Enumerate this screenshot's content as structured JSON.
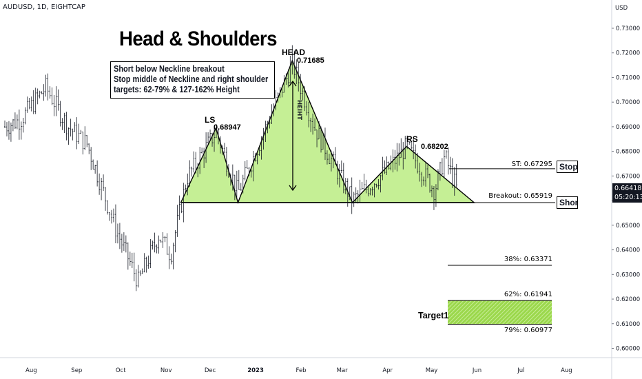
{
  "header": {
    "symbol": "AUDUSD, 1D, EIGHTCAP"
  },
  "chart_title": "Head & Shoulders",
  "notes": [
    "Short below Neckline breakout",
    "Stop middle of Neckline and right shoulder",
    "targets: 62-79% & 127-162% Height"
  ],
  "pattern_labels": {
    "ls": "LS",
    "ls_price": "0.68947",
    "head": "HEAD",
    "head_price": "0.71685",
    "rs": "RS",
    "rs_price": "0.68202",
    "height": "HEIHT"
  },
  "levels": {
    "stop": {
      "label": "ST: 0.67295",
      "tag": "Stop"
    },
    "breakout": {
      "label": "Breakout: 0.65919",
      "tag": "Shor"
    },
    "t38": {
      "label": "38%: 0.63371"
    },
    "t62": {
      "label": "62%: 0.61941"
    },
    "t79": {
      "label": "79%: 0.60977"
    },
    "target_label": "Target1"
  },
  "price_badge": {
    "price": "0.66418",
    "countdown": "05:20:13"
  },
  "colors": {
    "pattern_fill": "#c5ef95",
    "target_zone": "#9bd84c",
    "candles": "#131722",
    "badge": "#131722"
  },
  "chart_data": {
    "type": "line",
    "title": "",
    "xlabel": "",
    "ylabel": "USD",
    "ylim": [
      0.595,
      0.735
    ],
    "x_ticks": [
      "Aug",
      "Sep",
      "Oct",
      "Nov",
      "Dec",
      "2023",
      "Feb",
      "Mar",
      "Apr",
      "May",
      "Jun",
      "Jul",
      "Aug"
    ],
    "y_ticks": [
      "0.73000",
      "0.72000",
      "0.71000",
      "0.70000",
      "0.69000",
      "0.68000",
      "0.67000",
      "0.66000",
      "0.65000",
      "0.64000",
      "0.63000",
      "0.62000",
      "0.61000",
      "0.60000"
    ],
    "price_path": {
      "x": [
        "2022-07-14",
        "2022-07-25",
        "2022-08-11",
        "2022-08-26",
        "2022-09-08",
        "2022-09-28",
        "2022-10-13",
        "2022-10-27",
        "2022-11-04",
        "2022-11-15",
        "2022-12-05",
        "2022-12-20",
        "2023-01-04",
        "2023-01-26",
        "2023-02-10",
        "2023-03-08",
        "2023-03-31",
        "2023-04-14",
        "2023-05-03",
        "2023-05-10",
        "2023-05-18"
      ],
      "y": [
        0.69,
        0.693,
        0.706,
        0.69,
        0.683,
        0.648,
        0.627,
        0.646,
        0.638,
        0.669,
        0.688,
        0.663,
        0.684,
        0.7158,
        0.69,
        0.66,
        0.672,
        0.682,
        0.664,
        0.678,
        0.665
      ]
    },
    "pattern_points": {
      "x": [
        "2022-11-11",
        "2022-12-05",
        "2022-12-20",
        "2023-01-26",
        "2023-03-08",
        "2023-04-14",
        "2023-05-30"
      ],
      "y": [
        0.6592,
        0.68947,
        0.6592,
        0.71685,
        0.6592,
        0.68202,
        0.6592
      ],
      "labels": [
        "",
        "LS",
        "",
        "HEAD",
        "",
        "RS",
        ""
      ]
    },
    "levels": [
      {
        "name": "Stop",
        "y": 0.67295
      },
      {
        "name": "Breakout",
        "y": 0.65919
      },
      {
        "name": "38%",
        "y": 0.63371
      },
      {
        "name": "62%",
        "y": 0.61941
      },
      {
        "name": "79%",
        "y": 0.60977
      }
    ],
    "last_price": 0.66418,
    "grid": false,
    "legend": "none"
  }
}
